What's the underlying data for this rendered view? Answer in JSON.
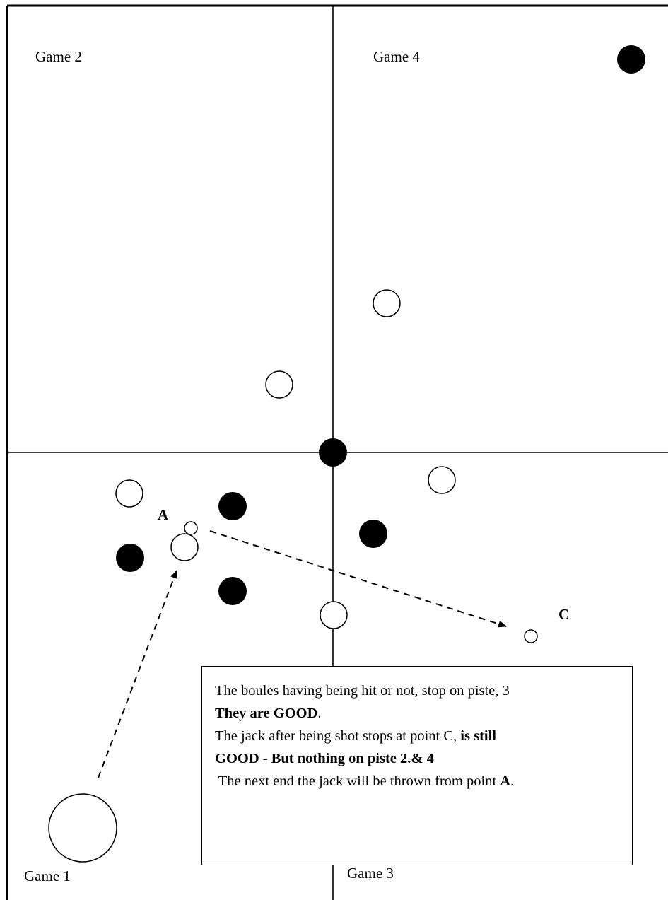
{
  "games": {
    "game1": "Game 1",
    "game2": "Game 2",
    "game3": "Game 3",
    "game4": "Game 4"
  },
  "points": {
    "a": "A",
    "c": "C"
  },
  "note": {
    "line1": "The boules having being hit or not, stop on piste, 3",
    "line2_bold": "They are GOOD",
    "line2_tail": ".",
    "line3_plain": "The jack after being shot stops at point C, ",
    "line3_bold": "is still",
    "line4_bold1": "GOOD",
    "line4_plain": " - ",
    "line4_bold2": "But nothing on piste 2.& 4",
    "line5_plain": " The next end the jack will be thrown from point ",
    "line5_bold": "A",
    "line5_tail": "."
  },
  "colors": {
    "black_boule": "#000000",
    "white_boule": "#ffffff",
    "line": "#000000"
  }
}
